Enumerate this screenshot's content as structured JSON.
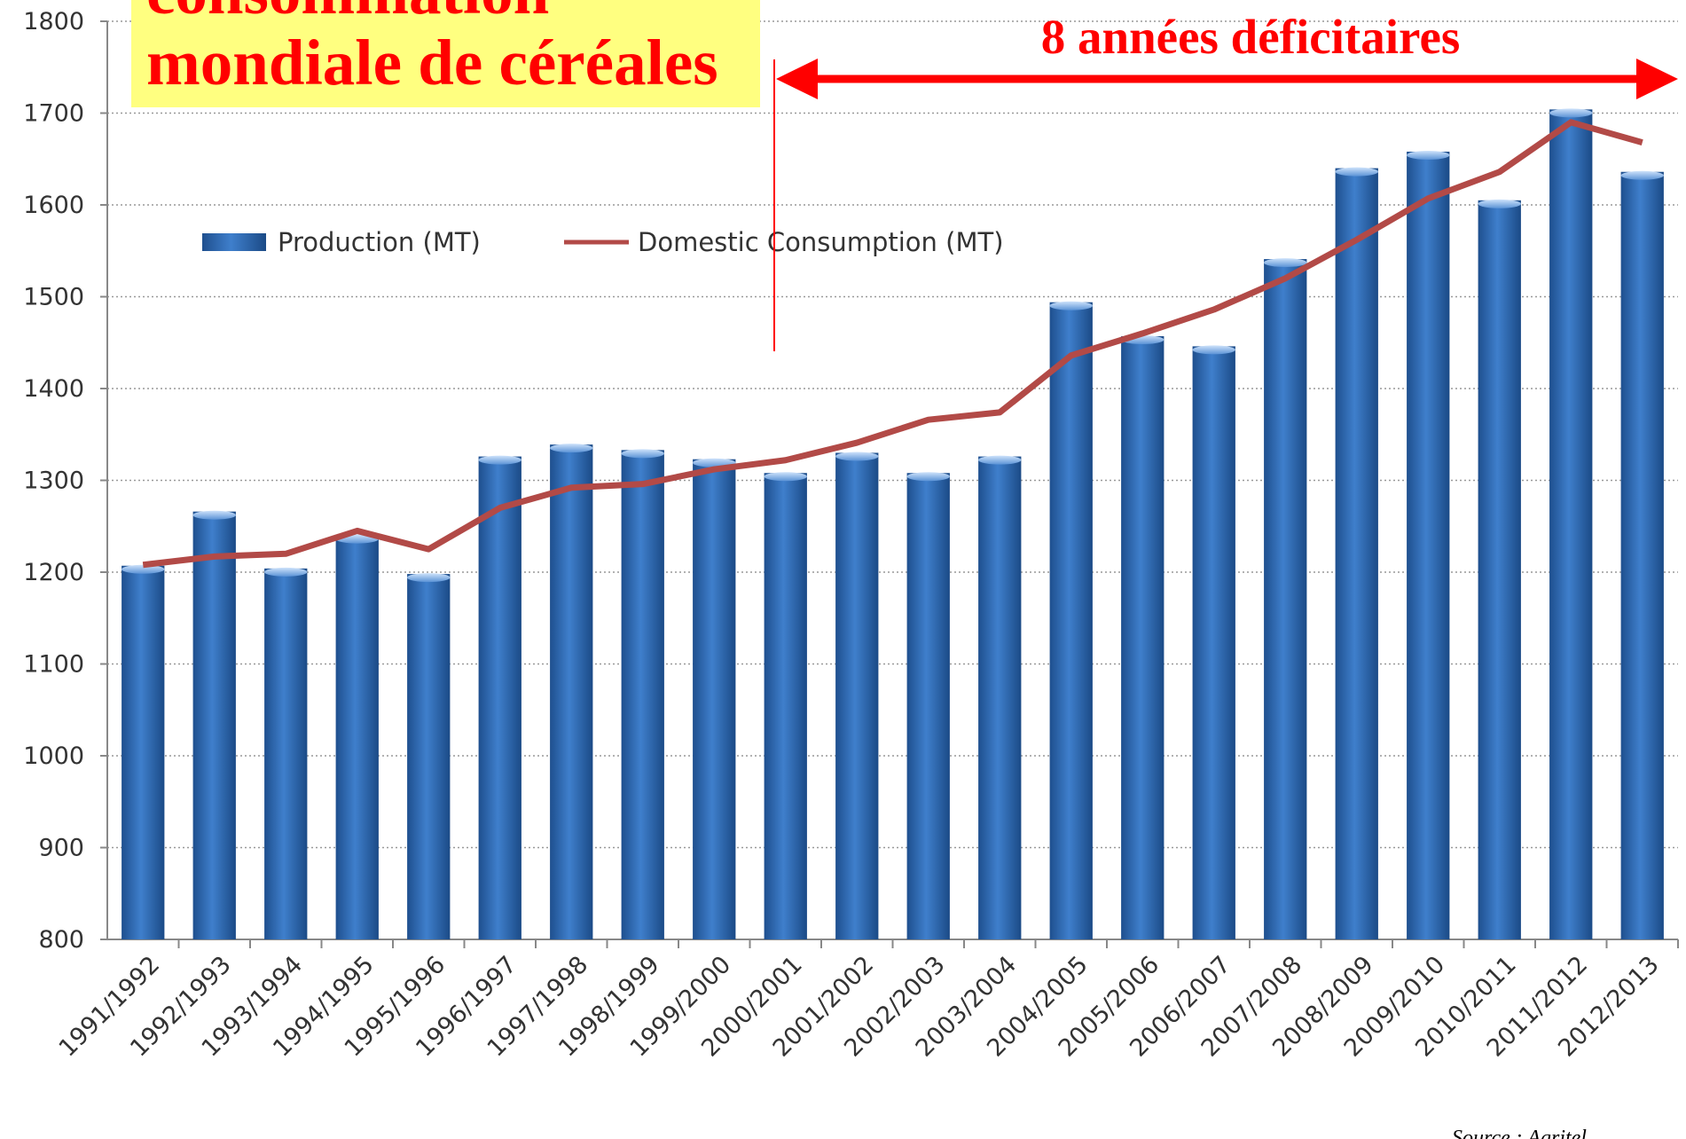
{
  "chart_data": {
    "type": "bar-line",
    "title_lines": [
      "consommation",
      "mondiale de céréales"
    ],
    "annotation": "8 années déficitaires",
    "source": "Source : Agritel",
    "categories": [
      "1991/1992",
      "1992/1993",
      "1993/1994",
      "1994/1995",
      "1995/1996",
      "1996/1997",
      "1997/1998",
      "1998/1999",
      "1999/2000",
      "2000/2001",
      "2001/2002",
      "2002/2003",
      "2003/2004",
      "2004/2005",
      "2005/2006",
      "2006/2007",
      "2007/2008",
      "2008/2009",
      "2009/2010",
      "2010/2011",
      "2011/2012",
      "2012/2013"
    ],
    "series": [
      {
        "name": "Production (MT)",
        "kind": "bar",
        "color": "#2f64a8",
        "values": [
          1207,
          1266,
          1204,
          1240,
          1198,
          1326,
          1339,
          1333,
          1323,
          1308,
          1330,
          1308,
          1326,
          1494,
          1457,
          1446,
          1541,
          1640,
          1658,
          1605,
          1704,
          1636
        ]
      },
      {
        "name": "Domestic Consumption  (MT)",
        "kind": "line",
        "color": "#b24a47",
        "values": [
          1208,
          1217,
          1220,
          1245,
          1225,
          1270,
          1292,
          1296,
          1312,
          1322,
          1341,
          1366,
          1374,
          1436,
          1460,
          1486,
          1520,
          1562,
          1607,
          1636,
          1690,
          1668
        ]
      }
    ],
    "ylim": [
      800,
      1800
    ],
    "yticks": [
      800,
      900,
      1000,
      1100,
      1200,
      1300,
      1400,
      1500,
      1600,
      1700,
      1800
    ],
    "grid": true
  }
}
